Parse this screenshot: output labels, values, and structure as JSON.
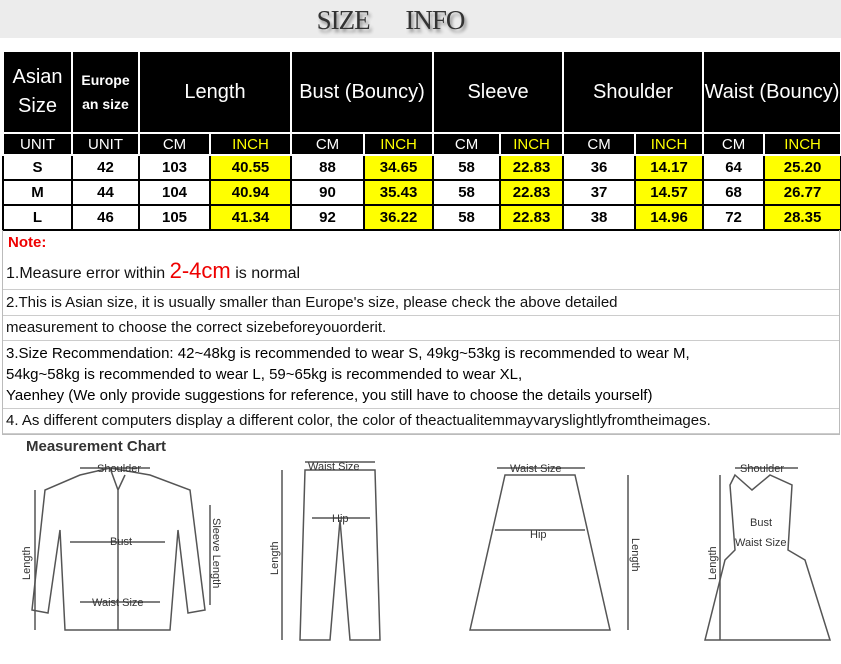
{
  "title": "SIZE    INFO",
  "headers": {
    "asian": "Asian Size",
    "europe": "Europe an size",
    "length": "Length",
    "bust": "Bust (Bouncy)",
    "sleeve": "Sleeve",
    "shoulder": "Shoulder",
    "waist": "Waist (Bouncy)"
  },
  "units": [
    "UNIT",
    "UNIT",
    "CM",
    "INCH",
    "CM",
    "INCH",
    "CM",
    "INCH",
    "CM",
    "INCH",
    "CM",
    "INCH"
  ],
  "rows": [
    [
      "S",
      "42",
      "103",
      "40.55",
      "88",
      "34.65",
      "58",
      "22.83",
      "36",
      "14.17",
      "64",
      "25.20"
    ],
    [
      "M",
      "44",
      "104",
      "40.94",
      "90",
      "35.43",
      "58",
      "22.83",
      "37",
      "14.57",
      "68",
      "26.77"
    ],
    [
      "L",
      "46",
      "105",
      "41.34",
      "92",
      "36.22",
      "58",
      "22.83",
      "38",
      "14.96",
      "72",
      "28.35"
    ]
  ],
  "notes": {
    "heading": "Note:",
    "n1_pre": "1.Measure error within ",
    "n1_big": "2-4cm",
    "n1_post": " is normal",
    "n2a": "2.This is Asian size, it is usually smaller than Europe's size, please check the above detailed",
    "n2b": "measurement to choose the correct sizebeforeyouorderit.",
    "n3a": "3.Size Recommendation:   42~48kg is recommended to wear S, 49kg~53kg is recommended to wear M,",
    "n3b": "54kg~58kg is recommended to wear L, 59~65kg is recommended to wear XL,",
    "n3c": "Yaenhey (We only provide suggestions for reference, you still have to choose the details yourself)",
    "n4": "4. As different computers display a different color, the color of theactualitemmayvaryslightlyfromtheimages."
  },
  "chart": {
    "title": "Measurement Chart",
    "shoulder": "Shoulder",
    "bust": "Bust",
    "length": "Length",
    "sleeve": "Sleeve Length",
    "waist": "Waist Size",
    "hip": "Hip"
  },
  "colors": {
    "highlight": "#ffff00",
    "note": "#ee0000"
  }
}
